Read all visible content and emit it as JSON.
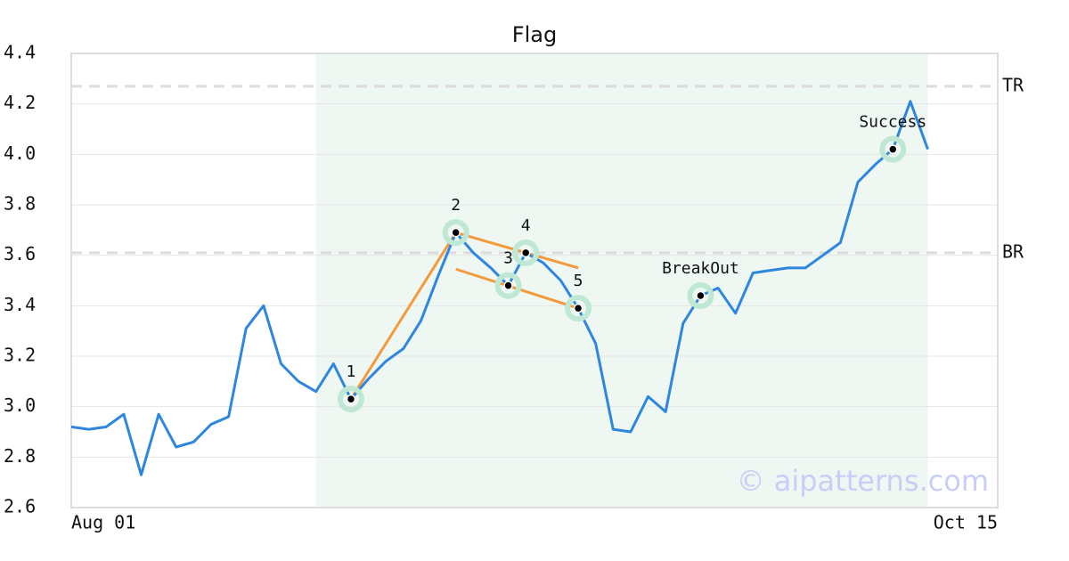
{
  "chart_data": {
    "type": "line",
    "title": "Flag",
    "x": [
      0,
      1,
      2,
      3,
      4,
      5,
      6,
      7,
      8,
      9,
      10,
      11,
      12,
      13,
      14,
      15,
      16,
      17,
      18,
      19,
      20,
      21,
      22,
      23,
      24,
      25,
      26,
      27,
      28,
      29,
      30,
      31,
      32,
      33,
      34,
      35,
      36,
      37,
      38,
      39,
      40,
      41,
      42,
      43,
      44,
      45,
      46,
      47,
      48,
      49
    ],
    "series": [
      {
        "color": "#2e86de",
        "values": [
          2.92,
          2.91,
          2.92,
          2.97,
          2.73,
          2.97,
          2.84,
          2.86,
          2.93,
          2.96,
          3.31,
          3.4,
          3.17,
          3.1,
          3.06,
          3.17,
          3.03,
          3.11,
          3.18,
          3.23,
          3.34,
          3.52,
          3.69,
          3.61,
          3.55,
          3.48,
          3.61,
          3.57,
          3.5,
          3.39,
          3.25,
          2.91,
          2.9,
          3.04,
          2.98,
          3.33,
          3.44,
          3.47,
          3.37,
          3.53,
          3.54,
          3.55,
          3.55,
          3.6,
          3.65,
          3.89,
          3.96,
          4.02,
          4.21,
          4.02
        ]
      }
    ],
    "xlim": [
      0,
      53
    ],
    "xticks": [
      {
        "value": 0,
        "label": "Aug 01"
      },
      {
        "value": 53,
        "label": "Oct 15"
      }
    ],
    "ylim": [
      2.6,
      4.4
    ],
    "yticks": [
      2.6,
      2.8,
      {
        "value": 3.0,
        "label": "3.0"
      },
      3.2,
      3.4,
      3.6,
      3.8,
      {
        "value": 4.0,
        "label": "4.0"
      },
      4.2,
      4.4
    ],
    "grid": true,
    "highlight_range": [
      14,
      49
    ],
    "reference_lines": [
      {
        "label": "TR",
        "value": 4.27
      },
      {
        "label": "BR",
        "value": 3.61
      }
    ],
    "trend_color": "#f59a3c",
    "trend_lines": [
      {
        "x": [
          16,
          22
        ],
        "y": [
          3.03,
          3.69
        ]
      },
      {
        "x": [
          22,
          29
        ],
        "y": [
          3.69,
          3.55
        ]
      },
      {
        "x": [
          22,
          29
        ],
        "y": [
          3.545,
          3.39
        ]
      }
    ],
    "pattern_points": [
      {
        "label": "1",
        "x": 16,
        "y": 3.03
      },
      {
        "label": "2",
        "x": 22,
        "y": 3.69
      },
      {
        "label": "3",
        "x": 25,
        "y": 3.48
      },
      {
        "label": "4",
        "x": 26,
        "y": 3.61
      },
      {
        "label": "5",
        "x": 29,
        "y": 3.39
      },
      {
        "label": "BreakOut",
        "x": 36,
        "y": 3.44
      },
      {
        "label": "Success",
        "x": 47,
        "y": 4.02
      }
    ],
    "watermark": "© aipatterns.com"
  }
}
